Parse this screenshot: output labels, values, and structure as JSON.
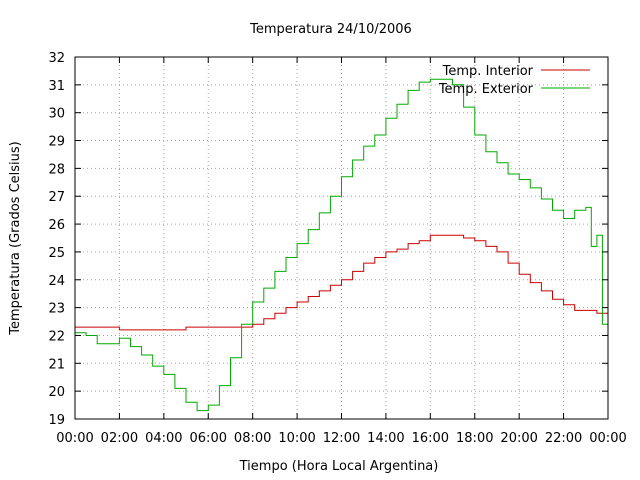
{
  "chart_data": {
    "type": "line",
    "title": "Temperatura 24/10/2006",
    "xlabel": "Tiempo (Hora Local Argentina)",
    "ylabel": "Temperatura (Grados Celsius)",
    "xlim": [
      0,
      24
    ],
    "ylim": [
      19,
      32
    ],
    "x_ticks": [
      "00:00",
      "02:00",
      "04:00",
      "06:00",
      "08:00",
      "10:00",
      "12:00",
      "14:00",
      "16:00",
      "18:00",
      "20:00",
      "22:00",
      "00:00"
    ],
    "y_ticks": [
      "19",
      "20",
      "21",
      "22",
      "23",
      "24",
      "25",
      "26",
      "27",
      "28",
      "29",
      "30",
      "31",
      "32"
    ],
    "grid": true,
    "legend_position": "top-right",
    "series": [
      {
        "name": "Temp. Interior",
        "color": "#cc0000",
        "x": [
          0,
          1,
          1.5,
          2,
          3,
          4,
          4.5,
          5,
          6,
          6.5,
          7,
          7.5,
          8,
          8.5,
          9,
          9.5,
          10,
          10.5,
          11,
          11.5,
          12,
          12.5,
          13,
          13.5,
          14,
          14.5,
          15,
          15.5,
          16,
          16.5,
          17,
          17.5,
          18,
          18.5,
          19,
          19.5,
          20,
          20.5,
          21,
          21.5,
          22,
          22.5,
          23,
          23.5,
          24
        ],
        "y": [
          22.3,
          22.3,
          22.3,
          22.2,
          22.2,
          22.2,
          22.2,
          22.3,
          22.3,
          22.3,
          22.3,
          22.3,
          22.4,
          22.6,
          22.8,
          23.0,
          23.2,
          23.4,
          23.6,
          23.8,
          24.0,
          24.3,
          24.6,
          24.8,
          25.0,
          25.1,
          25.3,
          25.4,
          25.6,
          25.6,
          25.6,
          25.5,
          25.4,
          25.2,
          25.0,
          24.6,
          24.2,
          23.9,
          23.6,
          23.3,
          23.1,
          22.9,
          22.9,
          22.8,
          22.4
        ]
      },
      {
        "name": "Temp. Exterior",
        "color": "#00aa00",
        "x": [
          0,
          0.5,
          1,
          1.5,
          2,
          2.5,
          3,
          3.5,
          4,
          4.5,
          5,
          5.5,
          6,
          6.5,
          7,
          7.5,
          8,
          8.5,
          9,
          9.5,
          10,
          10.5,
          11,
          11.5,
          12,
          12.5,
          13,
          13.5,
          14,
          14.5,
          15,
          15.5,
          16,
          16.5,
          17,
          17.5,
          18,
          18.5,
          19,
          19.5,
          20,
          20.5,
          21,
          21.5,
          22,
          22.5,
          23,
          23.25,
          23.5,
          23.75,
          24
        ],
        "y": [
          22.1,
          22.0,
          21.7,
          21.7,
          21.9,
          21.6,
          21.3,
          20.9,
          20.6,
          20.1,
          19.6,
          19.3,
          19.5,
          20.2,
          21.2,
          22.4,
          23.2,
          23.7,
          24.3,
          24.8,
          25.3,
          25.8,
          26.4,
          27.0,
          27.7,
          28.3,
          28.8,
          29.2,
          29.8,
          30.3,
          30.8,
          31.1,
          31.2,
          31.2,
          31.0,
          30.2,
          29.2,
          28.6,
          28.2,
          27.8,
          27.6,
          27.3,
          26.9,
          26.5,
          26.2,
          26.5,
          26.6,
          25.2,
          25.6,
          22.4,
          21.7
        ]
      }
    ]
  }
}
